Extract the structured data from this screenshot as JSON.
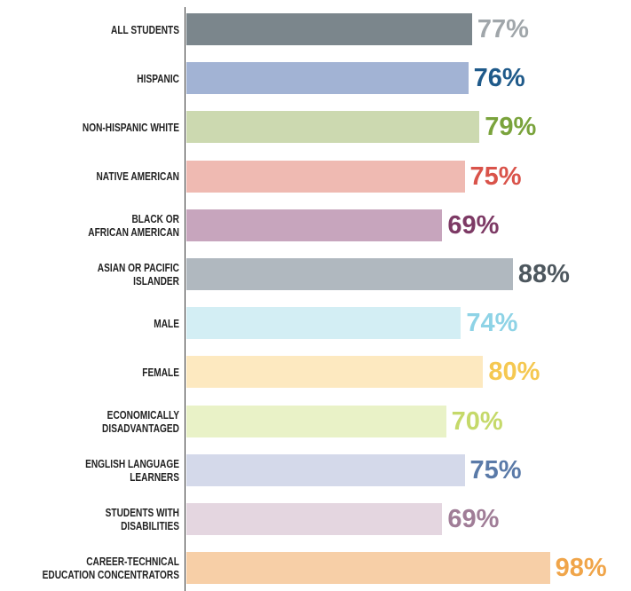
{
  "chart_data": {
    "type": "bar",
    "orientation": "horizontal",
    "categories": [
      "ALL STUDENTS",
      "HISPANIC",
      "NON-HISPANIC WHITE",
      "NATIVE AMERICAN",
      "BLACK OR\nAFRICAN AMERICAN",
      "ASIAN OR PACIFIC\nISLANDER",
      "MALE",
      "FEMALE",
      "ECONOMICALLY\nDISADVANTAGED",
      "ENGLISH LANGUAGE\nLEARNERS",
      "STUDENTS WITH\nDISABILITIES",
      "CAREER-TECHNICAL\nEDUCATION CONCENTRATORS"
    ],
    "values": [
      77,
      76,
      79,
      75,
      69,
      88,
      74,
      80,
      70,
      75,
      69,
      98
    ],
    "value_labels": [
      "77%",
      "76%",
      "79%",
      "75%",
      "69%",
      "88%",
      "74%",
      "80%",
      "70%",
      "75%",
      "69%",
      "98%"
    ],
    "colors": [
      "#7b868c",
      "#a2b3d4",
      "#ccd9b0",
      "#efbab2",
      "#c7a5bd",
      "#b0b8bf",
      "#d3eef4",
      "#fde9c0",
      "#e9f2c7",
      "#d4d9ea",
      "#e4d6e0",
      "#f7cfa7"
    ],
    "label_colors": [
      "#a0a6aa",
      "#1f5a8a",
      "#7aa33c",
      "#d9534a",
      "#7d3a65",
      "#4d575e",
      "#8ed3e6",
      "#f5c851",
      "#c5d96a",
      "#5a7aa8",
      "#a07d97",
      "#f0a54a"
    ]
  }
}
